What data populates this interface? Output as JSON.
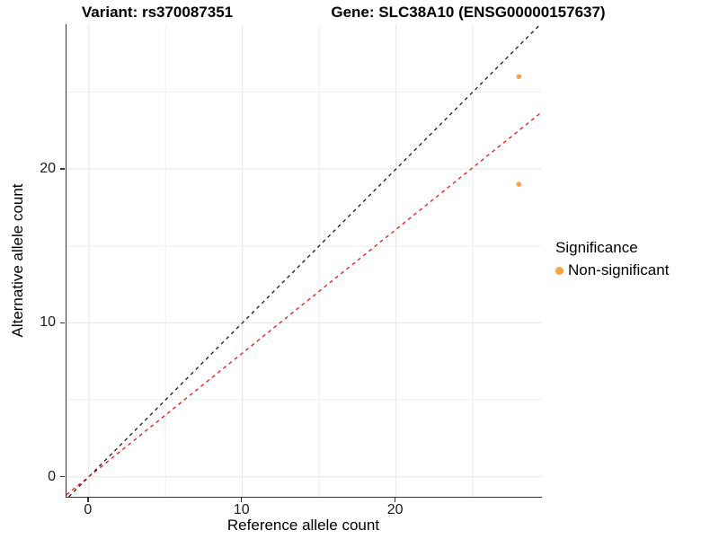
{
  "titles": {
    "variant": "Variant: rs370087351",
    "gene": "Gene: SLC38A10 (ENSG00000157637)"
  },
  "chart_data": {
    "type": "scatter",
    "xlabel": "Reference allele count",
    "ylabel": "Alternative allele count",
    "xlim": [
      -1.45,
      29.5
    ],
    "ylim": [
      -1.3,
      29.4
    ],
    "xticks": [
      0,
      10,
      20
    ],
    "yticks": [
      0,
      10,
      20
    ],
    "xticks_minor": [
      5,
      15,
      25
    ],
    "yticks_minor": [
      5,
      15,
      25
    ],
    "grid": "major+minor",
    "points": [
      {
        "x": 28,
        "y": 26,
        "significance": "Non-significant"
      },
      {
        "x": 28,
        "y": 19,
        "significance": "Non-significant"
      }
    ],
    "point_color": "#FAA43E",
    "point_radius": 2.8,
    "lines": [
      {
        "name": "identity-line",
        "slope": 1.0,
        "intercept": 0,
        "color": "#1a1a1a",
        "style": "dashed"
      },
      {
        "name": "ratio-line",
        "slope": 0.8036,
        "intercept": 0,
        "color": "#EE1111",
        "style": "dashed"
      }
    ],
    "legend": {
      "title": "Significance",
      "position": "right",
      "entries": [
        {
          "label": "Non-significant",
          "color": "#FAA43E",
          "marker": "circle"
        }
      ]
    },
    "colors": {
      "grid_major": "#E6E6E6",
      "grid_minor": "#EDEDED",
      "axis_line": "#333333",
      "tick_text": "#1a1a1a"
    }
  }
}
